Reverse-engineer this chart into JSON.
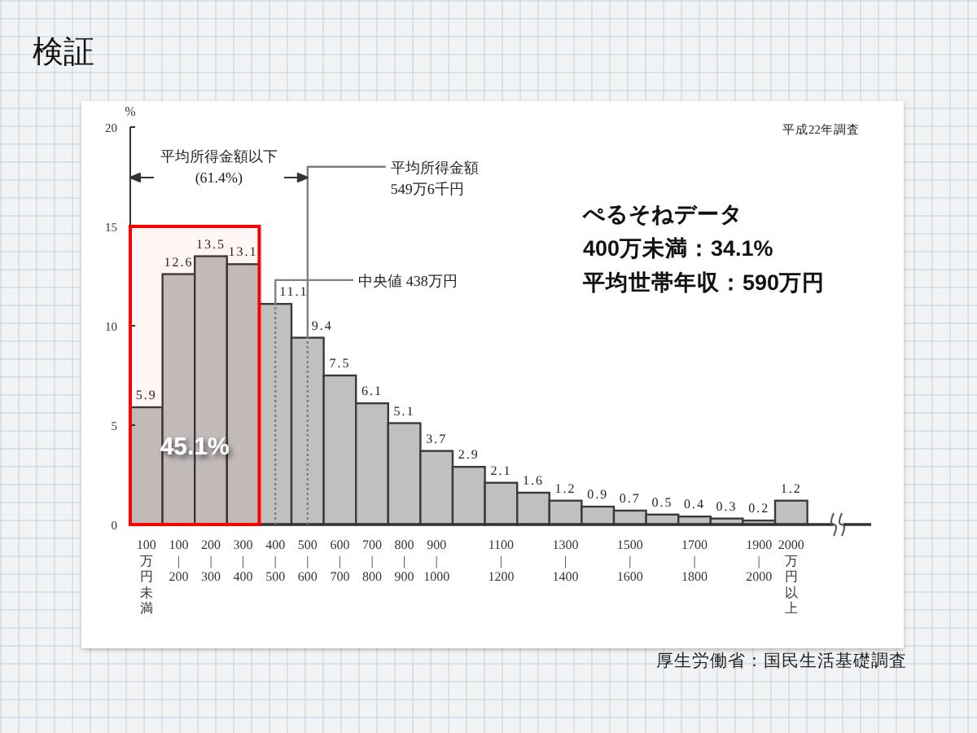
{
  "chart_data": {
    "type": "bar",
    "title": "検証",
    "ylabel": "%",
    "categories": [
      "100万円未満",
      "100\n|\n200",
      "200\n|\n300",
      "300\n|\n400",
      "400\n|\n500",
      "500\n|\n600",
      "600\n|\n700",
      "700\n|\n800",
      "800\n|\n900",
      "900\n|\n1000",
      null,
      "1100\n|\n1200",
      null,
      "1300\n|\n1400",
      null,
      "1500\n|\n1600",
      null,
      "1700\n|\n1800",
      null,
      "1900\n|\n2000",
      "2000万円以上"
    ],
    "values": [
      5.9,
      12.6,
      13.5,
      13.1,
      11.1,
      9.4,
      7.5,
      6.1,
      5.1,
      3.7,
      2.9,
      2.1,
      1.6,
      1.2,
      0.9,
      0.7,
      0.5,
      0.4,
      0.3,
      0.2,
      1.2
    ],
    "color": "#c0c0c0",
    "data_labels": true,
    "ylim": [
      0,
      20
    ],
    "yticks": [
      0,
      5,
      10,
      15,
      20
    ],
    "ref_lines": [
      {
        "axis": "x",
        "value": "500\n|\n600",
        "label": "平均所得金額\n549万6千円",
        "color": "#7f7f7f"
      },
      {
        "axis": "x",
        "value": "400\n|\n500",
        "label": "中央値 438万円",
        "color": "#7f7f7f"
      }
    ],
    "bands": [
      {
        "axis": "x",
        "from": "100万円未満",
        "to": "300\n|\n400",
        "label": "45.1%",
        "color": "#ff0000"
      }
    ],
    "annotations": [
      "平成22年調査",
      "平均所得金額以下\n(61.4%)",
      "ぺるそねデータ\n400万未満：34.1%\n平均世帯年収：590万円",
      "厚生労働省：国民生活基礎調査"
    ]
  }
}
